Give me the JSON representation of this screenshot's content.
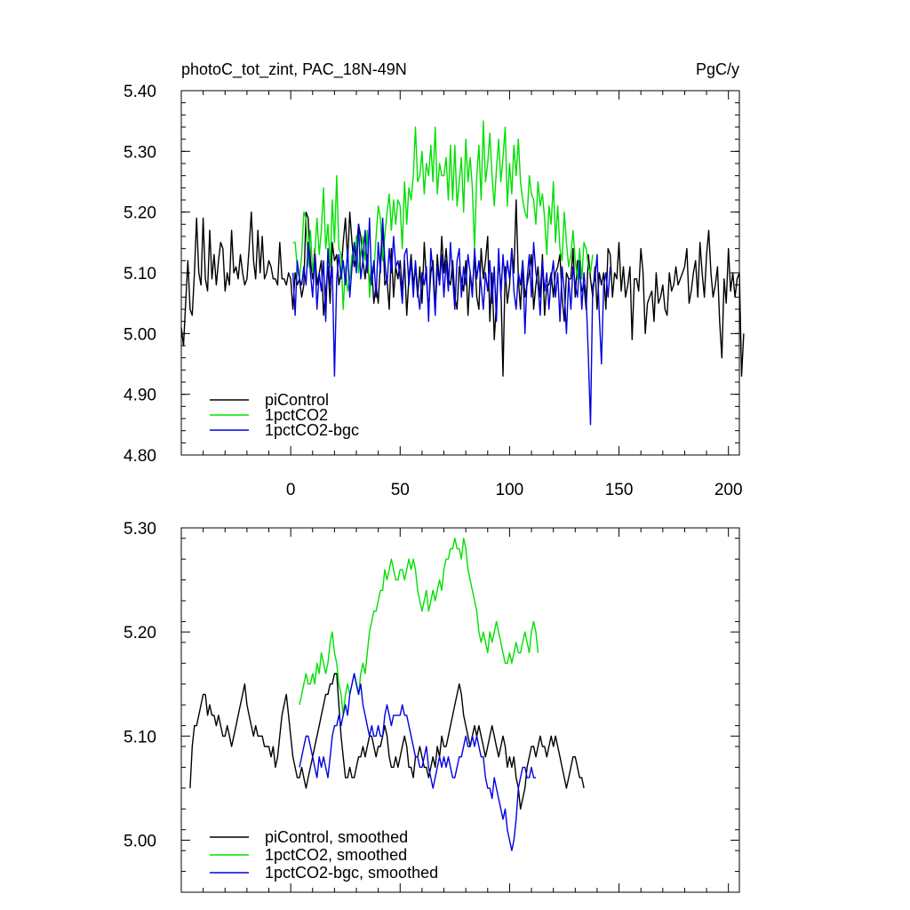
{
  "chart_data": [
    {
      "type": "line",
      "title": "photoC_tot_zint, PAC_18N-49N",
      "units": "PgC/y",
      "xlim": [
        -50,
        205
      ],
      "ylim": [
        4.8,
        5.4
      ],
      "xticks": [
        0,
        50,
        100,
        150,
        200
      ],
      "xtick_labels": [
        "0",
        "50",
        "100",
        "150",
        "200"
      ],
      "yticks": [
        4.8,
        4.9,
        5.0,
        5.1,
        5.2,
        5.3,
        5.4
      ],
      "ytick_labels": [
        "4.80",
        "4.90",
        "5.00",
        "5.10",
        "5.20",
        "5.30",
        "5.40"
      ],
      "legend_position": "bottom-left",
      "series": [
        {
          "name": "piControl",
          "color": "#000000",
          "x_start": -50,
          "values": [
            5.01,
            4.98,
            5.05,
            5.12,
            5.04,
            5.03,
            5.1,
            5.19,
            5.1,
            5.08,
            5.19,
            5.09,
            5.07,
            5.17,
            5.09,
            5.13,
            5.08,
            5.12,
            5.15,
            5.14,
            5.07,
            5.1,
            5.08,
            5.17,
            5.1,
            5.11,
            5.09,
            5.13,
            5.1,
            5.08,
            5.09,
            5.14,
            5.2,
            5.12,
            5.09,
            5.17,
            5.1,
            5.16,
            5.09,
            5.1,
            5.12,
            5.11,
            5.09,
            5.09,
            5.08,
            5.15,
            5.09,
            5.09,
            5.08,
            5.1,
            5.09,
            5.04,
            5.1,
            5.08,
            5.09,
            5.06,
            5.08,
            5.2,
            5.19,
            5.12,
            5.09,
            5.14,
            5.08,
            5.1,
            5.12,
            5.03,
            5.07,
            5.11,
            5.05,
            5.15,
            5.12,
            5.13,
            5.08,
            5.1,
            5.15,
            5.19,
            5.12,
            5.2,
            5.15,
            5.11,
            5.14,
            5.18,
            5.16,
            5.12,
            5.09,
            5.13,
            5.08,
            5.11,
            5.05,
            5.08,
            5.05,
            5.12,
            5.18,
            5.08,
            5.09,
            5.04,
            5.14,
            5.06,
            5.11,
            5.09,
            5.12,
            5.07,
            5.12,
            5.03,
            5.09,
            5.13,
            5.08,
            5.11,
            5.06,
            5.11,
            5.05,
            5.15,
            5.09,
            5.04,
            5.1,
            5.12,
            5.04,
            5.13,
            5.08,
            5.16,
            5.1,
            5.14,
            5.09,
            5.08,
            5.12,
            5.06,
            5.04,
            5.11,
            5.09,
            5.07,
            5.12,
            5.03,
            5.1,
            5.07,
            5.13,
            5.06,
            5.04,
            5.14,
            5.09,
            5.12,
            5.16,
            5.02,
            5.1,
            4.99,
            5.05,
            5.12,
            5.08,
            4.93,
            5.11,
            5.05,
            5.08,
            5.14,
            5.1,
            5.22,
            5.09,
            5.04,
            5.12,
            5.06,
            5.08,
            5.1,
            5.13,
            5.04,
            5.08,
            5.11,
            5.06,
            5.13,
            5.03,
            5.08,
            5.08,
            5.1,
            5.06,
            5.1,
            5.11,
            5.13,
            5.06,
            5.02,
            5.1,
            5.09,
            5.09,
            5.14,
            5.06,
            5.12,
            5.1,
            5.07,
            5.08,
            5.04,
            5.13,
            5.09,
            5.06,
            5.11,
            5.04,
            5.1,
            5.08,
            5.1,
            5.04,
            5.14,
            5.13,
            5.06,
            5.1,
            5.09,
            5.15,
            5.07,
            5.11,
            5.06,
            5.08,
            5.11,
            4.99,
            5.09,
            5.09,
            5.07,
            5.14,
            5.1,
            5.0,
            5.05,
            5.06,
            5.07,
            5.02,
            5.1,
            5.05,
            5.06,
            5.08,
            5.04,
            5.03,
            5.1,
            5.07,
            5.08,
            5.11,
            5.08,
            5.09,
            5.1,
            5.11,
            5.14,
            5.05,
            5.07,
            5.1,
            5.12,
            5.06,
            5.15,
            5.1,
            5.06,
            5.13,
            5.17,
            5.1,
            5.06,
            5.08,
            5.11,
            5.02,
            4.96,
            5.09,
            5.05,
            5.14,
            5.07,
            5.1,
            5.06,
            5.09,
            5.1,
            4.93,
            5.0
          ]
        },
        {
          "name": "1pctCO2",
          "color": "#00e000",
          "x_start": 1,
          "values": [
            5.15,
            5.15,
            5.11,
            5.09,
            5.13,
            5.2,
            5.19,
            5.11,
            5.17,
            5.1,
            5.13,
            5.19,
            5.13,
            5.17,
            5.24,
            5.14,
            5.18,
            5.11,
            5.22,
            5.15,
            5.26,
            5.14,
            5.13,
            5.04,
            5.11,
            5.07,
            5.09,
            5.13,
            5.12,
            5.16,
            5.1,
            5.13,
            5.16,
            5.12,
            5.17,
            5.06,
            5.11,
            5.1,
            5.16,
            5.21,
            5.19,
            5.12,
            5.16,
            5.2,
            5.23,
            5.17,
            5.22,
            5.18,
            5.22,
            5.21,
            5.14,
            5.25,
            5.18,
            5.24,
            5.22,
            5.26,
            5.34,
            5.25,
            5.26,
            5.3,
            5.23,
            5.28,
            5.26,
            5.31,
            5.25,
            5.34,
            5.23,
            5.28,
            5.26,
            5.26,
            5.29,
            5.22,
            5.31,
            5.22,
            5.31,
            5.21,
            5.25,
            5.29,
            5.2,
            5.32,
            5.25,
            5.29,
            5.24,
            5.14,
            5.26,
            5.31,
            5.22,
            5.35,
            5.25,
            5.28,
            5.33,
            5.26,
            5.21,
            5.27,
            5.32,
            5.25,
            5.29,
            5.34,
            5.21,
            5.28,
            5.23,
            5.31,
            5.26,
            5.32,
            5.25,
            5.22,
            5.2,
            5.19,
            5.26,
            5.23,
            5.22,
            5.18,
            5.25,
            5.21,
            5.23,
            5.19,
            5.13,
            5.21,
            5.18,
            5.25,
            5.15,
            5.21,
            5.14,
            5.12,
            5.2,
            5.15,
            5.11,
            5.13,
            5.17,
            5.12,
            5.09,
            5.14,
            5.09,
            5.15,
            5.14,
            5.11,
            5.1,
            5.13
          ]
        },
        {
          "name": "1pctCO2-bgc",
          "color": "#0000e0",
          "x_start": 1,
          "values": [
            5.1,
            5.03,
            5.12,
            5.09,
            5.08,
            5.11,
            5.08,
            5.15,
            5.1,
            5.06,
            5.13,
            5.04,
            5.1,
            5.07,
            5.12,
            5.02,
            5.14,
            5.08,
            5.11,
            4.93,
            5.09,
            5.13,
            5.09,
            5.12,
            5.08,
            5.14,
            5.06,
            5.11,
            5.15,
            5.1,
            5.18,
            5.09,
            5.12,
            5.17,
            5.1,
            5.19,
            5.08,
            5.12,
            5.06,
            5.15,
            5.1,
            5.19,
            5.12,
            5.08,
            5.14,
            5.1,
            5.16,
            5.11,
            5.12,
            5.09,
            5.05,
            5.13,
            5.14,
            5.08,
            5.12,
            5.06,
            5.12,
            5.07,
            5.04,
            5.1,
            5.08,
            5.11,
            5.02,
            5.14,
            5.1,
            5.03,
            5.11,
            5.08,
            5.13,
            5.06,
            5.12,
            5.07,
            5.15,
            5.09,
            5.04,
            5.12,
            5.14,
            5.06,
            5.11,
            5.08,
            5.13,
            5.1,
            5.06,
            5.14,
            5.09,
            5.12,
            5.08,
            5.04,
            5.1,
            5.07,
            5.12,
            5.05,
            5.11,
            5.02,
            5.14,
            5.06,
            5.13,
            5.08,
            5.12,
            5.09,
            5.14,
            5.07,
            5.04,
            5.1,
            5.08,
            5.12,
            5.0,
            5.09,
            5.13,
            5.06,
            5.15,
            5.1,
            5.08,
            5.03,
            5.12,
            5.07,
            5.1,
            5.04,
            5.09,
            5.12,
            5.06,
            5.1,
            5.02,
            5.11,
            5.07,
            5.0,
            5.09,
            5.04,
            5.11,
            5.08,
            5.06,
            5.12,
            5.04,
            5.1,
            5.06,
            4.96,
            4.85,
            5.08,
            5.09,
            5.13,
            5.03,
            4.95,
            5.08,
            5.1,
            5.06,
            5.11
          ]
        }
      ]
    },
    {
      "type": "line",
      "title": "",
      "xlim": [
        -50,
        205
      ],
      "ylim": [
        4.95,
        5.3
      ],
      "xticks": [
        0,
        50,
        100,
        150,
        200
      ],
      "yticks": [
        5.0,
        5.1,
        5.2,
        5.3
      ],
      "ytick_labels": [
        "5.00",
        "5.10",
        "5.20",
        "5.30"
      ],
      "legend_position": "bottom-left",
      "series": [
        {
          "name": "piControl, smoothed",
          "color": "#000000",
          "x_start": -46,
          "values": [
            5.05,
            5.09,
            5.11,
            5.11,
            5.12,
            5.13,
            5.14,
            5.14,
            5.12,
            5.13,
            5.12,
            5.12,
            5.11,
            5.12,
            5.11,
            5.1,
            5.1,
            5.11,
            5.1,
            5.09,
            5.1,
            5.11,
            5.12,
            5.13,
            5.14,
            5.15,
            5.13,
            5.12,
            5.11,
            5.1,
            5.11,
            5.1,
            5.1,
            5.1,
            5.09,
            5.09,
            5.09,
            5.08,
            5.09,
            5.07,
            5.08,
            5.1,
            5.12,
            5.13,
            5.14,
            5.12,
            5.1,
            5.08,
            5.07,
            5.06,
            5.06,
            5.07,
            5.06,
            5.05,
            5.06,
            5.07,
            5.08,
            5.09,
            5.1,
            5.11,
            5.12,
            5.13,
            5.14,
            5.14,
            5.15,
            5.15,
            5.16,
            5.16,
            5.13,
            5.1,
            5.08,
            5.06,
            5.06,
            5.07,
            5.06,
            5.06,
            5.07,
            5.08,
            5.08,
            5.09,
            5.08,
            5.09,
            5.1,
            5.1,
            5.09,
            5.08,
            5.09,
            5.09,
            5.1,
            5.11,
            5.1,
            5.08,
            5.07,
            5.07,
            5.08,
            5.07,
            5.08,
            5.09,
            5.1,
            5.09,
            5.07,
            5.07,
            5.06,
            5.08,
            5.08,
            5.09,
            5.08,
            5.07,
            5.07,
            5.06,
            5.07,
            5.08,
            5.07,
            5.09,
            5.08,
            5.1,
            5.09,
            5.09,
            5.1,
            5.11,
            5.12,
            5.13,
            5.14,
            5.15,
            5.14,
            5.12,
            5.11,
            5.1,
            5.09,
            5.1,
            5.11,
            5.1,
            5.11,
            5.1,
            5.09,
            5.08,
            5.09,
            5.1,
            5.11,
            5.1,
            5.09,
            5.08,
            5.09,
            5.1,
            5.09,
            5.07,
            5.08,
            5.07,
            5.08,
            5.06,
            5.05,
            5.03,
            5.04,
            5.05,
            5.07,
            5.08,
            5.09,
            5.09,
            5.08,
            5.09,
            5.1,
            5.09,
            5.09,
            5.08,
            5.09,
            5.1,
            5.09,
            5.1,
            5.09,
            5.08,
            5.07,
            5.06,
            5.05,
            5.06,
            5.07,
            5.08,
            5.08,
            5.07,
            5.06,
            5.06,
            5.05
          ]
        },
        {
          "name": "1pctCO2, smoothed",
          "color": "#00e000",
          "x_start": 4,
          "values": [
            5.13,
            5.14,
            5.15,
            5.16,
            5.15,
            5.15,
            5.16,
            5.15,
            5.17,
            5.16,
            5.18,
            5.17,
            5.16,
            5.17,
            5.19,
            5.2,
            5.18,
            5.17,
            5.15,
            5.14,
            5.12,
            5.14,
            5.15,
            5.14,
            5.15,
            5.16,
            5.15,
            5.14,
            5.16,
            5.17,
            5.16,
            5.18,
            5.2,
            5.21,
            5.22,
            5.22,
            5.23,
            5.24,
            5.24,
            5.26,
            5.25,
            5.26,
            5.27,
            5.26,
            5.25,
            5.25,
            5.26,
            5.26,
            5.25,
            5.26,
            5.27,
            5.26,
            5.27,
            5.26,
            5.24,
            5.23,
            5.22,
            5.23,
            5.24,
            5.22,
            5.23,
            5.24,
            5.23,
            5.24,
            5.25,
            5.24,
            5.26,
            5.27,
            5.27,
            5.28,
            5.28,
            5.29,
            5.28,
            5.28,
            5.27,
            5.29,
            5.28,
            5.26,
            5.25,
            5.24,
            5.23,
            5.22,
            5.2,
            5.19,
            5.2,
            5.19,
            5.18,
            5.2,
            5.19,
            5.2,
            5.21,
            5.2,
            5.19,
            5.18,
            5.17,
            5.17,
            5.18,
            5.17,
            5.18,
            5.19,
            5.18,
            5.18,
            5.19,
            5.2,
            5.19,
            5.18,
            5.2,
            5.21,
            5.2,
            5.18
          ]
        },
        {
          "name": "1pctCO2-bgc, smoothed",
          "color": "#0000e0",
          "x_start": 4,
          "values": [
            5.07,
            5.08,
            5.09,
            5.1,
            5.1,
            5.09,
            5.08,
            5.07,
            5.06,
            5.08,
            5.07,
            5.08,
            5.07,
            5.06,
            5.08,
            5.1,
            5.11,
            5.11,
            5.12,
            5.11,
            5.12,
            5.13,
            5.12,
            5.14,
            5.15,
            5.16,
            5.15,
            5.14,
            5.15,
            5.13,
            5.12,
            5.11,
            5.1,
            5.11,
            5.1,
            5.1,
            5.11,
            5.1,
            5.1,
            5.12,
            5.13,
            5.12,
            5.11,
            5.12,
            5.12,
            5.12,
            5.12,
            5.13,
            5.12,
            5.12,
            5.11,
            5.1,
            5.09,
            5.08,
            5.08,
            5.07,
            5.07,
            5.08,
            5.09,
            5.07,
            5.06,
            5.05,
            5.06,
            5.07,
            5.08,
            5.07,
            5.08,
            5.07,
            5.08,
            5.07,
            5.06,
            5.06,
            5.07,
            5.08,
            5.08,
            5.09,
            5.1,
            5.09,
            5.09,
            5.1,
            5.09,
            5.1,
            5.09,
            5.08,
            5.08,
            5.06,
            5.05,
            5.05,
            5.04,
            5.06,
            5.05,
            5.04,
            5.03,
            5.02,
            5.03,
            5.01,
            5.0,
            4.99,
            5.0,
            5.02,
            5.05,
            5.06,
            5.07,
            5.07,
            5.06,
            5.06,
            5.07,
            5.06,
            5.06
          ]
        }
      ]
    }
  ]
}
